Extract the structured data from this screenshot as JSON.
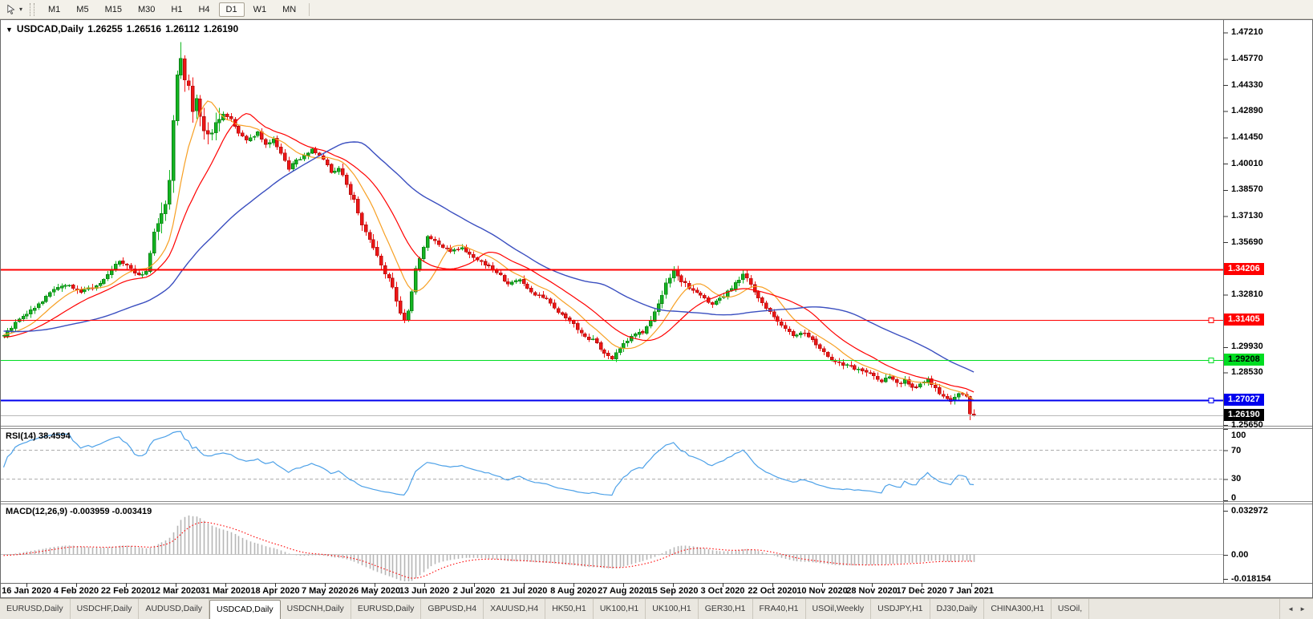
{
  "icons": {
    "window_menu": "▼",
    "dropdown": "▾",
    "tab_scroll_left": "◄",
    "tab_scroll_right": "►"
  },
  "toolbar": {
    "timeframes": [
      {
        "label": "M1",
        "active": false
      },
      {
        "label": "M5",
        "active": false
      },
      {
        "label": "M15",
        "active": false
      },
      {
        "label": "M30",
        "active": false
      },
      {
        "label": "H1",
        "active": false
      },
      {
        "label": "H4",
        "active": false
      },
      {
        "label": "D1",
        "active": true
      },
      {
        "label": "W1",
        "active": false
      },
      {
        "label": "MN",
        "active": false
      }
    ]
  },
  "chart": {
    "symbol_period": "USDCAD,Daily",
    "open": "1.26255",
    "high": "1.26516",
    "low": "1.26112",
    "close": "1.26190"
  },
  "rsi": {
    "label": "RSI(14) 38.4594"
  },
  "macd": {
    "label": "MACD(12,26,9) -0.003959 -0.003419"
  },
  "tabs": [
    {
      "label": "EURUSD,Daily",
      "active": false
    },
    {
      "label": "USDCHF,Daily",
      "active": false
    },
    {
      "label": "AUDUSD,Daily",
      "active": false
    },
    {
      "label": "USDCAD,Daily",
      "active": true
    },
    {
      "label": "USDCNH,Daily",
      "active": false
    },
    {
      "label": "EURUSD,Daily",
      "active": false
    },
    {
      "label": "GBPUSD,H4",
      "active": false
    },
    {
      "label": "XAUUSD,H4",
      "active": false
    },
    {
      "label": "HK50,H1",
      "active": false
    },
    {
      "label": "UK100,H1",
      "active": false
    },
    {
      "label": "UK100,H1",
      "active": false
    },
    {
      "label": "GER30,H1",
      "active": false
    },
    {
      "label": "FRA40,H1",
      "active": false
    },
    {
      "label": "USOil,Weekly",
      "active": false
    },
    {
      "label": "USDJPY,H1",
      "active": false
    },
    {
      "label": "DJ30,Daily",
      "active": false
    },
    {
      "label": "CHINA300,H1",
      "active": false
    },
    {
      "label": "USOil,",
      "active": false
    }
  ],
  "chart_data": {
    "type": "candlestick",
    "symbol": "USDCAD",
    "timeframe": "Daily",
    "last_candle": {
      "open": 1.26255,
      "high": 1.26516,
      "low": 1.26112,
      "close": 1.2619
    },
    "spike_high": 1.4668,
    "second_last_low": 1.2592,
    "candle_count": 253,
    "ylim": [
      1.2565,
      1.479
    ],
    "price_ticks": [
      "1.47210",
      "1.45770",
      "1.44330",
      "1.42890",
      "1.41450",
      "1.40010",
      "1.38570",
      "1.37130",
      "1.35690",
      "1.32810",
      "1.29930",
      "1.28530",
      "1.25650"
    ],
    "levels": [
      {
        "value": 1.34206,
        "label": "1.34206",
        "color": "#ff0000",
        "text_color": "#ffffff",
        "thickness": 2,
        "handle": false
      },
      {
        "value": 1.31405,
        "label": "1.31405",
        "color": "#ff0000",
        "text_color": "#ffffff",
        "thickness": 1,
        "handle": true
      },
      {
        "value": 1.29208,
        "label": "1.29208",
        "color": "#00dd22",
        "text_color": "#000000",
        "thickness": 1,
        "handle": true
      },
      {
        "value": 1.27027,
        "label": "1.27027",
        "color": "#0000ee",
        "text_color": "#ffffff",
        "thickness": 2,
        "handle": true
      }
    ],
    "current_price": {
      "value": 1.2619,
      "label": "1.26190",
      "line_color": "#b8b8b8",
      "badge_bg": "#000000"
    },
    "candle_colors": {
      "up": "#13b721",
      "up_border": "#0b7d14",
      "down": "#f21616",
      "down_border": "#b30d0d"
    },
    "moving_averages": [
      {
        "period": 10,
        "color": "#f7a024",
        "width": 1.2
      },
      {
        "period": 20,
        "color": "#ff0000",
        "width": 1.2
      },
      {
        "period": 50,
        "color": "#3b4fc0",
        "width": 1.4
      }
    ],
    "x_labels": [
      "16 Jan 2020",
      "4 Feb 2020",
      "22 Feb 2020",
      "12 Mar 2020",
      "31 Mar 2020",
      "18 Apr 2020",
      "7 May 2020",
      "26 May 2020",
      "13 Jun 2020",
      "2 Jul 2020",
      "21 Jul 2020",
      "8 Aug 2020",
      "27 Aug 2020",
      "15 Sep 2020",
      "3 Oct 2020",
      "22 Oct 2020",
      "10 Nov 2020",
      "28 Nov 2020",
      "17 Dec 2020",
      "7 Jan 2021"
    ],
    "rsi": {
      "period": 14,
      "current": 38.4594,
      "color": "#4da1e8",
      "dashed_levels": [
        70,
        30
      ],
      "ticks": [
        {
          "label": "100",
          "value": 100
        },
        {
          "label": "70",
          "value": 70
        },
        {
          "label": "30",
          "value": 30
        },
        {
          "label": "0",
          "value": 0
        }
      ]
    },
    "macd": {
      "fast": 12,
      "slow": 26,
      "signal_period": 9,
      "current_macd": -0.003959,
      "current_signal": -0.003419,
      "histogram_color": "#b6b6b6",
      "signal_color": "#ff0000",
      "zero_line_color": "#c4c4c4",
      "ticks": [
        {
          "label": "0.032972",
          "value": 0.032972
        },
        {
          "label": "0.00",
          "value": 0
        },
        {
          "label": "-0.018154",
          "value": -0.018154
        }
      ]
    },
    "volatility_zones": [
      {
        "from": 40,
        "to": 56,
        "mult": 3.0
      },
      {
        "from": 88,
        "to": 106,
        "mult": 1.6
      },
      {
        "from": 168,
        "to": 176,
        "mult": 1.3
      }
    ],
    "anchor_closes": [
      [
        -60,
        1.3185
      ],
      [
        -40,
        1.3125
      ],
      [
        -25,
        1.3065
      ],
      [
        -12,
        1.3025
      ],
      [
        -5,
        1.3072
      ],
      [
        0,
        1.306
      ],
      [
        4,
        1.3145
      ],
      [
        8,
        1.3205
      ],
      [
        12,
        1.329
      ],
      [
        16,
        1.334
      ],
      [
        20,
        1.33
      ],
      [
        24,
        1.3322
      ],
      [
        27,
        1.3395
      ],
      [
        30,
        1.3465
      ],
      [
        32,
        1.344
      ],
      [
        35,
        1.3385
      ],
      [
        37,
        1.3402
      ],
      [
        39,
        1.362
      ],
      [
        41,
        1.371
      ],
      [
        43,
        1.389
      ],
      [
        44,
        1.423
      ],
      [
        45,
        1.449
      ],
      [
        46,
        1.456
      ],
      [
        47,
        1.448
      ],
      [
        48,
        1.441
      ],
      [
        49,
        1.43
      ],
      [
        50,
        1.437
      ],
      [
        52,
        1.419
      ],
      [
        53,
        1.415
      ],
      [
        55,
        1.4215
      ],
      [
        57,
        1.428
      ],
      [
        59,
        1.424
      ],
      [
        61,
        1.417
      ],
      [
        63,
        1.413
      ],
      [
        66,
        1.417
      ],
      [
        68,
        1.4105
      ],
      [
        70,
        1.413
      ],
      [
        72,
        1.406
      ],
      [
        74,
        1.3975
      ],
      [
        76,
        1.402
      ],
      [
        78,
        1.4042
      ],
      [
        80,
        1.4085
      ],
      [
        83,
        1.402
      ],
      [
        85,
        1.3955
      ],
      [
        87,
        1.3978
      ],
      [
        91,
        1.38
      ],
      [
        93,
        1.367
      ],
      [
        95,
        1.358
      ],
      [
        97,
        1.349
      ],
      [
        99,
        1.3405
      ],
      [
        101,
        1.3315
      ],
      [
        103,
        1.319
      ],
      [
        104,
        1.3142
      ],
      [
        105,
        1.32
      ],
      [
        107,
        1.342
      ],
      [
        109,
        1.354
      ],
      [
        110,
        1.36
      ],
      [
        113,
        1.356
      ],
      [
        116,
        1.3515
      ],
      [
        119,
        1.3535
      ],
      [
        122,
        1.349
      ],
      [
        125,
        1.345
      ],
      [
        128,
        1.3405
      ],
      [
        131,
        1.334
      ],
      [
        134,
        1.3362
      ],
      [
        137,
        1.3295
      ],
      [
        141,
        1.325
      ],
      [
        143,
        1.3205
      ],
      [
        146,
        1.316
      ],
      [
        149,
        1.3095
      ],
      [
        151,
        1.305
      ],
      [
        153,
        1.3032
      ],
      [
        156,
        1.2965
      ],
      [
        158,
        1.293
      ],
      [
        161,
        1.301
      ],
      [
        163,
        1.3052
      ],
      [
        166,
        1.3075
      ],
      [
        168,
        1.314
      ],
      [
        170,
        1.323
      ],
      [
        172,
        1.334
      ],
      [
        174,
        1.3405
      ],
      [
        176,
        1.336
      ],
      [
        178,
        1.3315
      ],
      [
        181,
        1.327
      ],
      [
        184,
        1.323
      ],
      [
        187,
        1.3272
      ],
      [
        190,
        1.334
      ],
      [
        192,
        1.3395
      ],
      [
        194,
        1.334
      ],
      [
        197,
        1.323
      ],
      [
        200,
        1.316
      ],
      [
        203,
        1.3095
      ],
      [
        205,
        1.305
      ],
      [
        207,
        1.3075
      ],
      [
        210,
        1.303
      ],
      [
        213,
        1.2965
      ],
      [
        215,
        1.292
      ],
      [
        218,
        1.29
      ],
      [
        221,
        1.2875
      ],
      [
        224,
        1.2855
      ],
      [
        226,
        1.2835
      ],
      [
        228,
        1.281
      ],
      [
        230,
        1.2832
      ],
      [
        232,
        1.279
      ],
      [
        234,
        1.2812
      ],
      [
        236,
        1.2765
      ],
      [
        238,
        1.279
      ],
      [
        240,
        1.2812
      ],
      [
        242,
        1.2765
      ],
      [
        244,
        1.2722
      ],
      [
        246,
        1.27
      ],
      [
        248,
        1.2738
      ],
      [
        250,
        1.2722
      ],
      [
        251,
        1.2626
      ],
      [
        252,
        1.2619
      ]
    ]
  }
}
